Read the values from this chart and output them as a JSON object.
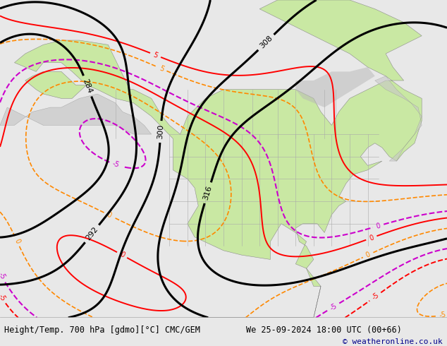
{
  "title_left": "Height/Temp. 700 hPa [gdmo][°C] CMC/GEM",
  "title_right": "We 25-09-2024 18:00 UTC (00+66)",
  "copyright": "© weatheronline.co.uk",
  "bg_color": "#e8e8e8",
  "ocean_color": "#e0e0e0",
  "land_green": "#c8e8a0",
  "land_gray": "#b8b8b8",
  "land_gray2": "#c8c8c8",
  "bar_bg": "#ffffff",
  "text_color": "#000000",
  "text_color_copy": "#00008b",
  "figsize": [
    6.34,
    4.9
  ],
  "dpi": 100,
  "font_size_label": 8.5,
  "font_size_copy": 8
}
